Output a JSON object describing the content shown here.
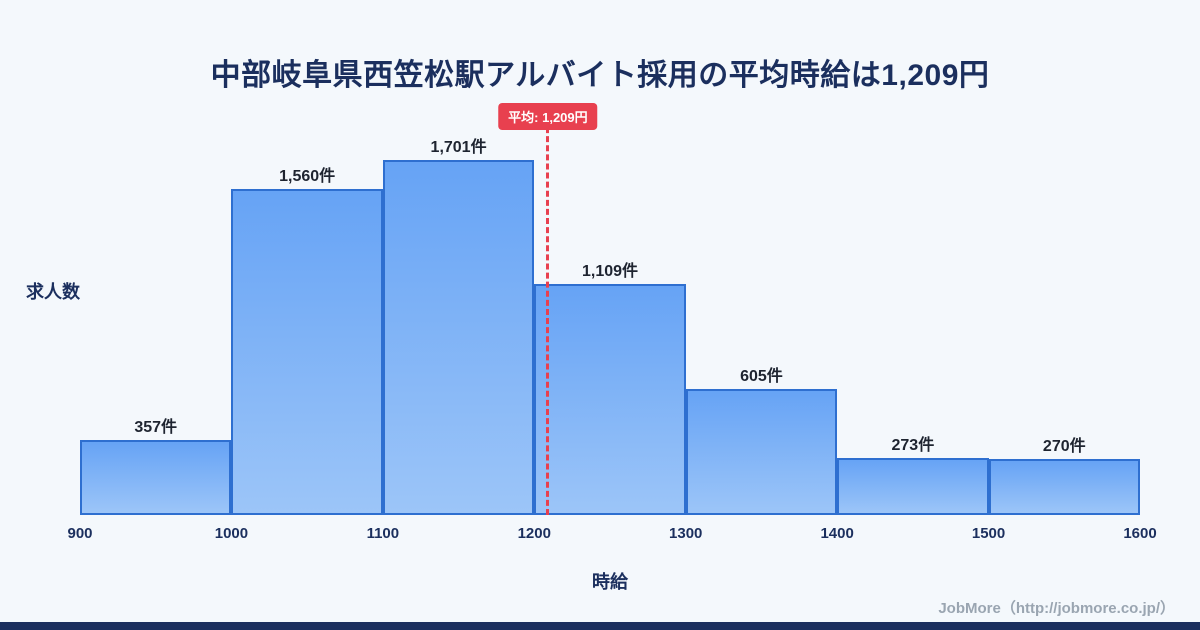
{
  "page": {
    "title": "中部岐阜県西笠松駅アルバイト採用の平均時給は1,209円",
    "footer": "JobMore（http://jobmore.co.jp/）"
  },
  "chart_data": {
    "type": "bar",
    "title": "中部岐阜県西笠松駅アルバイト採用の平均時給は1,209円",
    "xlabel": "時給",
    "ylabel": "求人数",
    "bin_edges": [
      900,
      1000,
      1100,
      1200,
      1300,
      1400,
      1500,
      1600
    ],
    "x_ticks": [
      "900",
      "1000",
      "1100",
      "1200",
      "1300",
      "1400",
      "1500",
      "1600"
    ],
    "values": [
      357,
      1560,
      1701,
      1109,
      605,
      273,
      270
    ],
    "bar_labels": [
      "357件",
      "1,560件",
      "1,701件",
      "1,109件",
      "605件",
      "273件",
      "270件"
    ],
    "average": 1209,
    "average_label": "平均: 1,209円",
    "xlim": [
      900,
      1600
    ],
    "ylim": [
      0,
      1701
    ],
    "grid": false,
    "legend": "none",
    "colors": {
      "bar_fill_top": "#66a3f5",
      "bar_fill_bottom": "#9cc5f8",
      "bar_border": "#2e6fd0",
      "average_line": "#e8404f",
      "badge_background": "#e8404f",
      "badge_text": "#ffffff",
      "title_text": "#1b2f5e",
      "footer_text": "#9aa5b1",
      "bottom_strip": "#1b2f5e",
      "background": "#f4f8fc"
    }
  }
}
